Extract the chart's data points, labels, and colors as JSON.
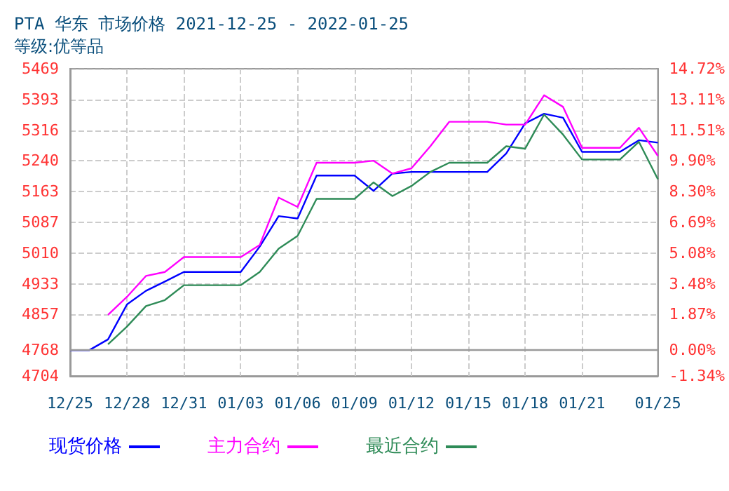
{
  "chart_data": {
    "type": "line",
    "title": "PTA 华东 市场价格 2021-12-25 - 2022-01-25",
    "subtitle": "等级:优等品",
    "x": [
      "2021-12-25",
      "2021-12-26",
      "2021-12-27",
      "2021-12-28",
      "2021-12-29",
      "2021-12-30",
      "2021-12-31",
      "2022-01-01",
      "2022-01-02",
      "2022-01-03",
      "2022-01-04",
      "2022-01-05",
      "2022-01-06",
      "2022-01-07",
      "2022-01-08",
      "2022-01-09",
      "2022-01-10",
      "2022-01-11",
      "2022-01-12",
      "2022-01-13",
      "2022-01-14",
      "2022-01-15",
      "2022-01-16",
      "2022-01-17",
      "2022-01-18",
      "2022-01-19",
      "2022-01-20",
      "2022-01-21",
      "2022-01-22",
      "2022-01-23",
      "2022-01-24",
      "2022-01-25"
    ],
    "series": [
      {
        "name": "现货价格",
        "color": "#0000ff",
        "values": [
          4768,
          4768,
          4795,
          4882,
          4916,
          4939,
          4963,
          4963,
          4963,
          4963,
          5026,
          5102,
          5096,
          5203,
          5203,
          5203,
          5165,
          5208,
          5212,
          5212,
          5212,
          5212,
          5212,
          5258,
          5333,
          5357,
          5347,
          5262,
          5262,
          5262,
          5291,
          5285
        ]
      },
      {
        "name": "主力合约",
        "color": "#ff00ff",
        "values": [
          null,
          null,
          4856,
          4901,
          4953,
          4963,
          5000,
          5000,
          5000,
          5000,
          5030,
          5148,
          5125,
          5235,
          5235,
          5235,
          5240,
          5208,
          5221,
          5276,
          5337,
          5337,
          5337,
          5330,
          5330,
          5403,
          5374,
          5272,
          5272,
          5272,
          5322,
          5252
        ]
      },
      {
        "name": "最近合约",
        "color": "#2e8b57",
        "values": [
          null,
          null,
          4783,
          4827,
          4878,
          4893,
          4930,
          4930,
          4930,
          4930,
          4963,
          5021,
          5053,
          5145,
          5145,
          5145,
          5186,
          5152,
          5177,
          5212,
          5235,
          5235,
          5235,
          5276,
          5270,
          5355,
          5305,
          5243,
          5243,
          5243,
          5287,
          5194
        ]
      }
    ],
    "xlim": [
      "2021-12-25",
      "2022-01-25"
    ],
    "xticks": [
      {
        "value": "2021-12-25",
        "label": "12/25"
      },
      {
        "value": "2021-12-28",
        "label": "12/28"
      },
      {
        "value": "2021-12-31",
        "label": "12/31"
      },
      {
        "value": "2022-01-03",
        "label": "01/03"
      },
      {
        "value": "2022-01-06",
        "label": "01/06"
      },
      {
        "value": "2022-01-09",
        "label": "01/09"
      },
      {
        "value": "2022-01-12",
        "label": "01/12"
      },
      {
        "value": "2022-01-15",
        "label": "01/15"
      },
      {
        "value": "2022-01-18",
        "label": "01/18"
      },
      {
        "value": "2022-01-21",
        "label": "01/21"
      },
      {
        "value": "2022-01-25",
        "label": "01/25"
      }
    ],
    "ylim": [
      4704,
      5469
    ],
    "yticks": [
      4704,
      4768,
      4857,
      4933,
      5010,
      5087,
      5163,
      5240,
      5316,
      5393,
      5469
    ],
    "y2lim": [
      -1.34,
      14.72
    ],
    "y2ticks": [
      {
        "value": -1.34,
        "label": "-1.34%"
      },
      {
        "value": 0,
        "label": "0.00%"
      },
      {
        "value": 1.87,
        "label": "1.87%"
      },
      {
        "value": 3.48,
        "label": "3.48%"
      },
      {
        "value": 5.08,
        "label": "5.08%"
      },
      {
        "value": 6.69,
        "label": "6.69%"
      },
      {
        "value": 8.3,
        "label": "8.30%"
      },
      {
        "value": 9.9,
        "label": "9.90%"
      },
      {
        "value": 11.51,
        "label": "11.51%"
      },
      {
        "value": 13.11,
        "label": "13.11%"
      },
      {
        "value": 14.72,
        "label": "14.72%"
      }
    ],
    "ref_lines": [
      {
        "axis": "y",
        "value": 4768,
        "color": "#999999"
      }
    ],
    "grid": true,
    "legend": "bottom",
    "marker": "none",
    "line_style": "solid"
  }
}
